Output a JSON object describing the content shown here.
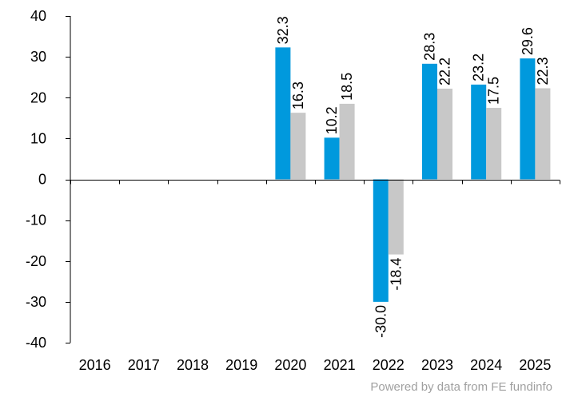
{
  "chart_data": {
    "type": "bar",
    "title": "",
    "xlabel": "",
    "ylabel": "",
    "categories": [
      "2016",
      "2017",
      "2018",
      "2019",
      "2020",
      "2021",
      "2022",
      "2023",
      "2024",
      "2025"
    ],
    "series": [
      {
        "color": "#0099dd",
        "values": [
          null,
          null,
          null,
          null,
          32.3,
          10.2,
          -30.0,
          28.3,
          23.2,
          29.6
        ],
        "labels": [
          "",
          "",
          "",
          "",
          "32.3",
          "10.2",
          "-30.0",
          "28.3",
          "23.2",
          "29.6"
        ]
      },
      {
        "color": "#c8c8c8",
        "values": [
          null,
          null,
          null,
          null,
          16.3,
          18.5,
          -18.4,
          22.2,
          17.5,
          22.3
        ],
        "labels": [
          "",
          "",
          "",
          "",
          "16.3",
          "18.5",
          "-18.4",
          "22.2",
          "17.5",
          "22.3"
        ]
      }
    ],
    "ylim": [
      -40,
      40
    ],
    "yticks": [
      -40,
      -30,
      -20,
      -10,
      0,
      10,
      20,
      30,
      40
    ],
    "ytick_labels": [
      "-40",
      "-30",
      "-20",
      "-10",
      "0",
      "10",
      "20",
      "30",
      "40"
    ],
    "grid": false,
    "legend": "none"
  },
  "footer": {
    "credit": "Powered by data from FE fundinfo"
  }
}
